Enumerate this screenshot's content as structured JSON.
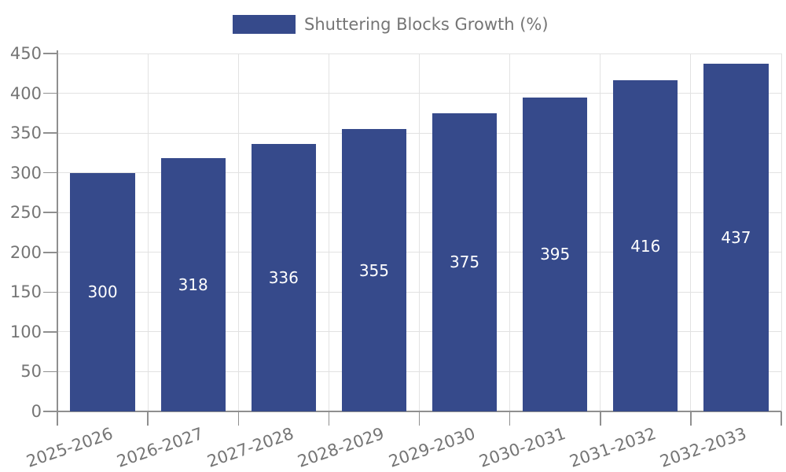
{
  "legend": {
    "label": "Shuttering Blocks Growth (%)"
  },
  "colors": {
    "bar": "#364A8B",
    "grid": "#E2E2E2",
    "axis": "#8F8F8F",
    "text": "#757575",
    "value_label": "#FFFFFF",
    "background": "#FFFFFF"
  },
  "chart_data": {
    "type": "bar",
    "title": "Shuttering Blocks Growth (%)",
    "categories": [
      "2025-2026",
      "2026-2027",
      "2027-2028",
      "2028-2029",
      "2029-2030",
      "2030-2031",
      "2031-2032",
      "2032-2033"
    ],
    "series": [
      {
        "name": "Shuttering Blocks Growth (%)",
        "values": [
          300,
          318,
          336,
          355,
          375,
          395,
          416,
          437
        ]
      }
    ],
    "values": [
      300,
      318,
      336,
      355,
      375,
      395,
      416,
      437
    ],
    "xlabel": "",
    "ylabel": "",
    "ylim": [
      0,
      450
    ],
    "yticks": [
      0,
      50,
      100,
      150,
      200,
      250,
      300,
      350,
      400,
      450
    ],
    "grid": true,
    "legend_position": "top-center",
    "value_labels_position": "inside-center",
    "x_label_rotation_deg": -19
  }
}
